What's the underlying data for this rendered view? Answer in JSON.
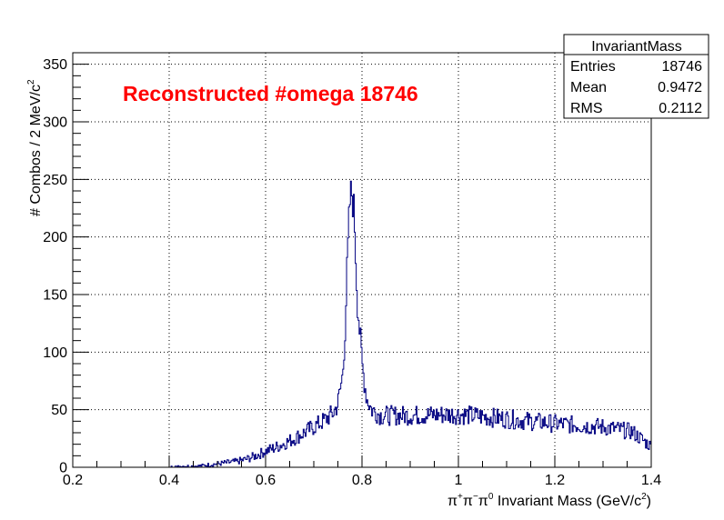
{
  "chart_data": {
    "type": "histogram",
    "title": "Reconstructed #omega 18746",
    "xlabel": "π⁺π⁻π⁰ Invariant Mass (GeV/c²)",
    "xlabel_parts": {
      "pi": "π",
      "plus": "+",
      "pi2": "π",
      "minus": "−",
      "pi3": "π",
      "zero": "0",
      "text": " Invariant Mass (GeV/c",
      "sq": "2",
      "close": ")"
    },
    "ylabel": "# Combos / 2 MeV/c²",
    "ylabel_parts": {
      "text": "# Combos / 2 MeV/c",
      "sq": "2"
    },
    "xlim": [
      0.2,
      1.4
    ],
    "ylim": [
      0,
      360
    ],
    "x_ticks": [
      0.2,
      0.4,
      0.6,
      0.8,
      1.0,
      1.2,
      1.4
    ],
    "x_tick_labels": [
      "0.2",
      "0.4",
      "0.6",
      "0.8",
      "1",
      "1.2",
      "1.4"
    ],
    "y_ticks": [
      0,
      50,
      100,
      150,
      200,
      250,
      300,
      350
    ],
    "y_tick_labels": [
      "0",
      "50",
      "100",
      "150",
      "200",
      "250",
      "300",
      "350"
    ],
    "grid": true,
    "line_color": "#000080",
    "title_color": "#ff0000",
    "bin_width": 0.002,
    "series": [
      {
        "values_sparse": [
          [
            0.4,
            0
          ],
          [
            0.43,
            1
          ],
          [
            0.46,
            1
          ],
          [
            0.48,
            2
          ],
          [
            0.5,
            3
          ],
          [
            0.52,
            4
          ],
          [
            0.54,
            5
          ],
          [
            0.56,
            7
          ],
          [
            0.58,
            10
          ],
          [
            0.6,
            14
          ],
          [
            0.62,
            17
          ],
          [
            0.64,
            21
          ],
          [
            0.66,
            25
          ],
          [
            0.68,
            30
          ],
          [
            0.7,
            35
          ],
          [
            0.72,
            40
          ],
          [
            0.74,
            47
          ],
          [
            0.75,
            55
          ],
          [
            0.76,
            80
          ],
          [
            0.765,
            120
          ],
          [
            0.77,
            180
          ],
          [
            0.775,
            230
          ],
          [
            0.78,
            240
          ],
          [
            0.785,
            210
          ],
          [
            0.79,
            150
          ],
          [
            0.8,
            90
          ],
          [
            0.81,
            60
          ],
          [
            0.82,
            50
          ],
          [
            0.84,
            45
          ],
          [
            0.9,
            45
          ],
          [
            1.0,
            46
          ],
          [
            1.1,
            42
          ],
          [
            1.2,
            38
          ],
          [
            1.3,
            35
          ],
          [
            1.36,
            31
          ],
          [
            1.4,
            18
          ]
        ]
      }
    ]
  },
  "stats_box": {
    "title": "InvariantMass",
    "rows": [
      {
        "label": "Entries",
        "value": "18746"
      },
      {
        "label": "Mean",
        "value": "0.9472"
      },
      {
        "label": "RMS",
        "value": "0.2112"
      }
    ]
  }
}
